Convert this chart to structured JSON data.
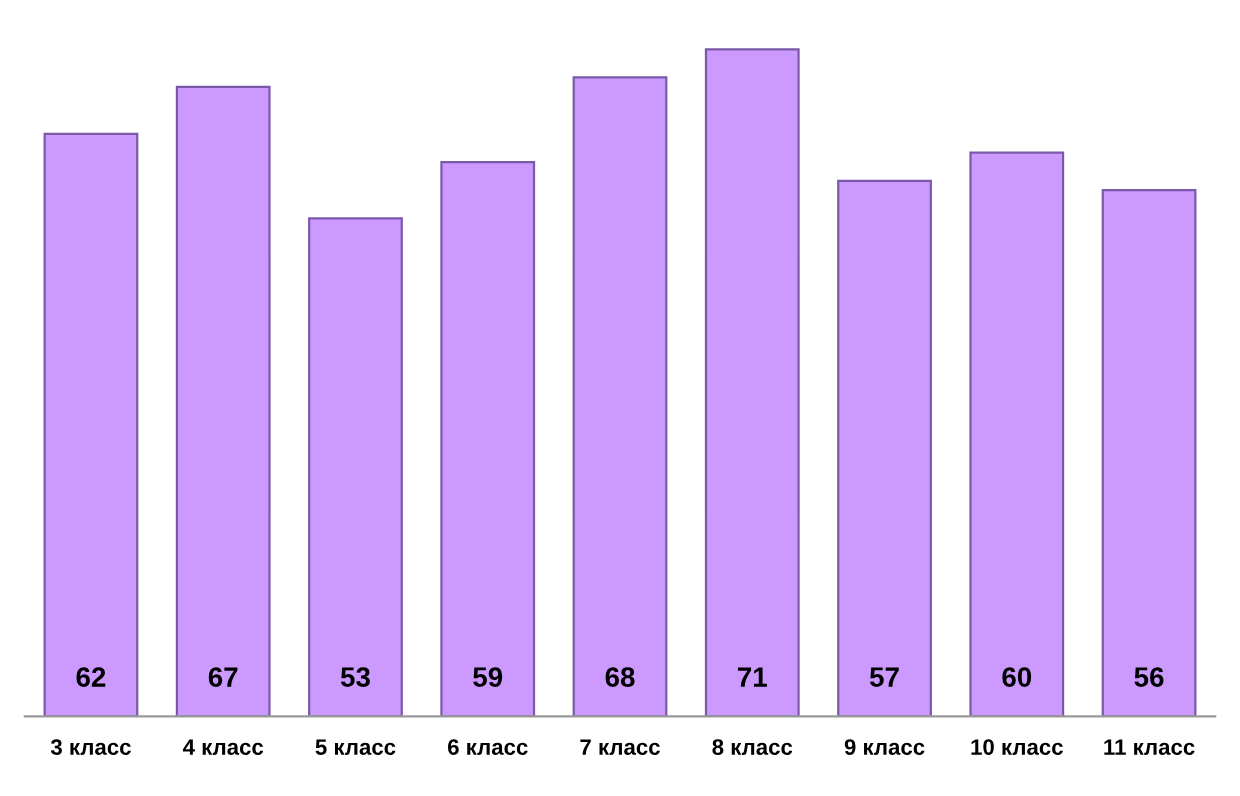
{
  "chart_data": {
    "type": "bar",
    "categories": [
      "3 класс",
      "4 класс",
      "5 класс",
      "6 класс",
      "7 класс",
      "8 класс",
      "9 класс",
      "10 класс",
      "11 класс"
    ],
    "values": [
      62,
      67,
      53,
      59,
      68,
      71,
      57,
      60,
      56
    ],
    "color": "#cc99ff",
    "data_labels": true,
    "grid": false
  }
}
